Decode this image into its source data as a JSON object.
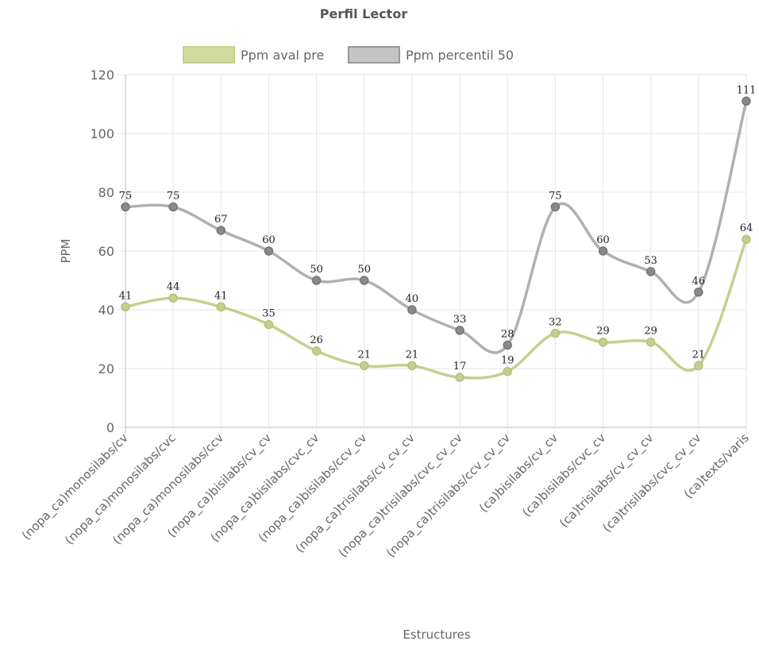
{
  "chart_data": {
    "type": "line",
    "title": "Perfil Lector",
    "xlabel": "Estructures",
    "ylabel": "PPM",
    "ylim": [
      0,
      120
    ],
    "yticks": [
      0,
      20,
      40,
      60,
      80,
      100,
      120
    ],
    "grid": true,
    "legend_position": "top",
    "categories": [
      "(nopa_ca)monosilabs/cv",
      "(nopa_ca)monosilabs/cvc",
      "(nopa_ca)monosilabs/ccv",
      "(nopa_ca)bisilabs/cv_cv",
      "(nopa_ca)bisilabs/cvc_cv",
      "(nopa_ca)bisilabs/ccv_cv",
      "(nopa_ca)trisilabs/cv_cv_cv",
      "(nopa_ca)trisilabs/cvc_cv_cv",
      "(nopa_ca)trisilabs/ccv_cv_cv",
      "(ca)bisilabs/cv_cv",
      "(ca)bisilabs/cvc_cv",
      "(ca)trisilabs/cv_cv_cv",
      "(ca)trisilabs/cvc_cv_cv",
      "(ca)texts/varis"
    ],
    "series": [
      {
        "name": "Ppm aval pre",
        "color": "#c5cf8f",
        "values": [
          41,
          44,
          41,
          35,
          26,
          21,
          21,
          17,
          19,
          32,
          29,
          29,
          21,
          64
        ]
      },
      {
        "name": "Ppm percentil 50",
        "color": "#b0b0b0",
        "values": [
          75,
          75,
          67,
          60,
          50,
          50,
          40,
          33,
          28,
          75,
          60,
          53,
          46,
          111
        ]
      }
    ]
  }
}
